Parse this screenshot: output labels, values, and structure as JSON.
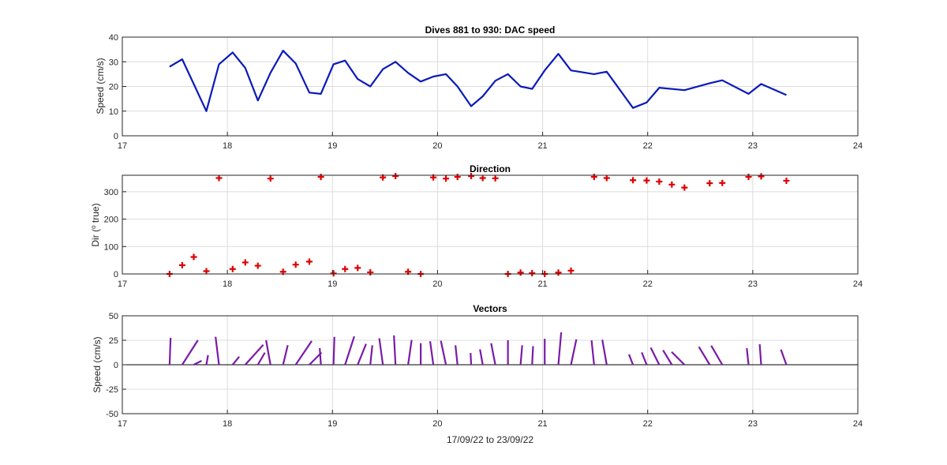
{
  "figure": {
    "xlabel": "17/09/22 to 23/09/22",
    "colors": {
      "speed_line": "#0a1ab8",
      "direction_marker": "#e00000",
      "vectors": "#7a1ba8",
      "grid": "#dcdcdc",
      "axes": "#262626"
    }
  },
  "chart_data": [
    {
      "type": "line",
      "title": "Dives 881 to 930: DAC speed",
      "xlabel": "",
      "ylabel": "Speed (cm/s)",
      "xlim": [
        17,
        24
      ],
      "ylim": [
        0,
        40
      ],
      "xticks": [
        17,
        18,
        19,
        20,
        21,
        22,
        23,
        24
      ],
      "yticks": [
        0,
        10,
        20,
        30,
        40
      ],
      "grid": true,
      "series": [
        {
          "x": [
            17.45,
            17.57,
            17.68,
            17.8,
            17.92,
            18.05,
            18.17,
            18.29,
            18.41,
            18.53,
            18.65,
            18.78,
            18.89,
            19.01,
            19.12,
            19.24,
            19.36,
            19.48,
            19.6,
            19.72,
            19.84,
            19.96,
            20.08,
            20.19,
            20.32,
            20.43,
            20.55,
            20.67,
            20.79,
            20.9,
            21.02,
            21.15,
            21.27,
            21.49,
            21.61,
            21.86,
            21.99,
            22.11,
            22.35,
            22.59,
            22.71,
            22.96,
            23.08,
            23.32
          ],
          "y": [
            28,
            31,
            21,
            10,
            29,
            33.8,
            27.5,
            14.3,
            25.5,
            34.5,
            29.3,
            17.5,
            17,
            29,
            30.5,
            23,
            20,
            27,
            30,
            25.5,
            22,
            24,
            25,
            20,
            12,
            16,
            22.3,
            25,
            20,
            19,
            26.5,
            33.2,
            26.5,
            25,
            26,
            11.3,
            13.5,
            19.5,
            18.5,
            21.3,
            22.5,
            17,
            21,
            16.5
          ]
        }
      ]
    },
    {
      "type": "scatter",
      "title": "Direction",
      "xlabel": "",
      "ylabel": "Dir (o true)",
      "xlim": [
        17,
        24
      ],
      "ylim": [
        0,
        360
      ],
      "xticks": [
        17,
        18,
        19,
        20,
        21,
        22,
        23,
        24
      ],
      "yticks": [
        0,
        100,
        200,
        300
      ],
      "grid": true,
      "marker": "+",
      "series": [
        {
          "x": [
            17.45,
            17.57,
            17.68,
            17.8,
            17.92,
            18.05,
            18.17,
            18.29,
            18.41,
            18.53,
            18.65,
            18.78,
            18.89,
            19.01,
            19.12,
            19.24,
            19.36,
            19.48,
            19.6,
            19.72,
            19.84,
            19.96,
            20.08,
            20.19,
            20.32,
            20.43,
            20.55,
            20.67,
            20.79,
            20.9,
            21.02,
            21.15,
            21.27,
            21.49,
            21.61,
            21.86,
            21.99,
            22.11,
            22.23,
            22.35,
            22.59,
            22.71,
            22.96,
            23.08,
            23.32
          ],
          "y": [
            0,
            32,
            62,
            10,
            350,
            18,
            42,
            30,
            348,
            8,
            34,
            45,
            354,
            2,
            18,
            22,
            6,
            352,
            357,
            8,
            0,
            352,
            348,
            354,
            357,
            350,
            349,
            0,
            5,
            3,
            0,
            5,
            12,
            354,
            350,
            342,
            341,
            337,
            326,
            315,
            331,
            332,
            354,
            356,
            340
          ]
        }
      ]
    },
    {
      "type": "quiver",
      "title": "Vectors",
      "xlabel": "17/09/22 to 23/09/22",
      "ylabel": "Speed (cm/s)",
      "xlim": [
        17,
        24
      ],
      "ylim": [
        -50,
        50
      ],
      "xticks": [
        17,
        18,
        19,
        20,
        21,
        22,
        23,
        24
      ],
      "yticks": [
        -50,
        -25,
        0,
        25,
        50
      ],
      "grid": true,
      "vectors": [
        {
          "x": 17.45,
          "u": 1,
          "v": 27.5
        },
        {
          "x": 17.57,
          "u": 16,
          "v": 25
        },
        {
          "x": 17.68,
          "u": 8,
          "v": 4
        },
        {
          "x": 17.8,
          "u": 1.7,
          "v": 9.8
        },
        {
          "x": 17.92,
          "u": -3.5,
          "v": 28.5
        },
        {
          "x": 18.05,
          "u": 6.7,
          "v": 8.2
        },
        {
          "x": 18.17,
          "u": 18.4,
          "v": 20.4
        },
        {
          "x": 18.29,
          "u": 7.2,
          "v": 12.4
        },
        {
          "x": 18.41,
          "u": -4.5,
          "v": 25.1
        },
        {
          "x": 18.53,
          "u": 4.8,
          "v": 20
        },
        {
          "x": 18.65,
          "u": 16.4,
          "v": 24.3
        },
        {
          "x": 18.78,
          "u": 12.4,
          "v": 12.4
        },
        {
          "x": 18.89,
          "u": -1.2,
          "v": 17
        },
        {
          "x": 19.01,
          "u": 0.9,
          "v": 28.5
        },
        {
          "x": 19.12,
          "u": 9.4,
          "v": 29
        },
        {
          "x": 19.24,
          "u": 8.6,
          "v": 21.3
        },
        {
          "x": 19.36,
          "u": 2.1,
          "v": 19.9
        },
        {
          "x": 19.48,
          "u": -3.7,
          "v": 27
        },
        {
          "x": 19.6,
          "u": -1.6,
          "v": 30
        },
        {
          "x": 19.72,
          "u": 3.6,
          "v": 25.3
        },
        {
          "x": 19.84,
          "u": 0,
          "v": 22
        },
        {
          "x": 19.96,
          "u": -3.3,
          "v": 24
        },
        {
          "x": 20.08,
          "u": -5.2,
          "v": 24.5
        },
        {
          "x": 20.19,
          "u": -2.1,
          "v": 19.9
        },
        {
          "x": 20.32,
          "u": -0.6,
          "v": 12
        },
        {
          "x": 20.43,
          "u": -2.8,
          "v": 15.8
        },
        {
          "x": 20.55,
          "u": -4.3,
          "v": 21.9
        },
        {
          "x": 20.67,
          "u": 0,
          "v": 25
        },
        {
          "x": 20.79,
          "u": 1.7,
          "v": 19.9
        },
        {
          "x": 20.9,
          "u": 1,
          "v": 19
        },
        {
          "x": 21.02,
          "u": 0,
          "v": 26.5
        },
        {
          "x": 21.15,
          "u": 2.9,
          "v": 33.1
        },
        {
          "x": 21.27,
          "u": 5.5,
          "v": 25.9
        },
        {
          "x": 21.49,
          "u": -2.6,
          "v": 24.9
        },
        {
          "x": 21.61,
          "u": -4.5,
          "v": 25.6
        },
        {
          "x": 21.86,
          "u": -4.1,
          "v": 10.6
        },
        {
          "x": 21.99,
          "u": -5,
          "v": 12.6
        },
        {
          "x": 22.11,
          "u": -8.7,
          "v": 17.4
        },
        {
          "x": 22.23,
          "u": -9,
          "v": 14.9
        },
        {
          "x": 22.35,
          "u": -13.1,
          "v": 13.1
        },
        {
          "x": 22.59,
          "u": -11,
          "v": 18.3
        },
        {
          "x": 22.71,
          "u": -11.3,
          "v": 19.5
        },
        {
          "x": 22.96,
          "u": -1.8,
          "v": 16.9
        },
        {
          "x": 23.08,
          "u": -1.5,
          "v": 20.9
        },
        {
          "x": 23.32,
          "u": -5.6,
          "v": 15.5
        }
      ]
    }
  ]
}
